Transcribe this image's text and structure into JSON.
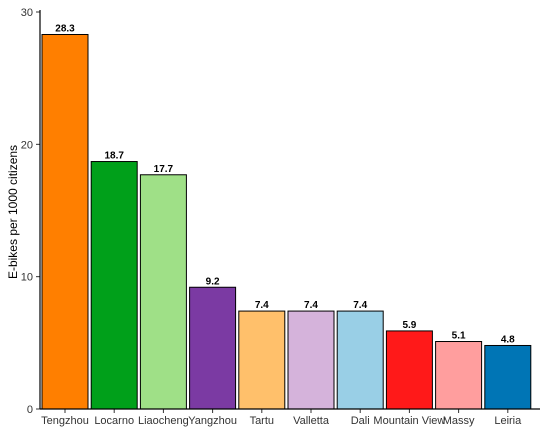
{
  "chart_data": {
    "type": "bar",
    "title": "",
    "xlabel": "",
    "ylabel": "E-bikes per 1000 citizens",
    "ylim": [
      0,
      30
    ],
    "yticks": [
      0,
      10,
      20,
      30
    ],
    "grid": false,
    "legend": "none",
    "categories": [
      "Tengzhou",
      "Locarno",
      "Liaocheng",
      "Yangzhou",
      "Tartu",
      "Valletta",
      "Dali",
      "Mountain View",
      "Massy",
      "Leiria"
    ],
    "values": [
      28.3,
      18.7,
      17.7,
      9.2,
      7.4,
      7.4,
      7.4,
      5.9,
      5.1,
      4.8
    ],
    "value_labels": [
      "28.3",
      "18.7",
      "17.7",
      "9.2",
      "7.4",
      "7.4",
      "7.4",
      "5.9",
      "5.1",
      "4.8"
    ],
    "colors": [
      "#FF7F00",
      "#00A01A",
      "#9FE087",
      "#7B3AA3",
      "#FFC06B",
      "#D5B3DB",
      "#99CFE6",
      "#FF1919",
      "#FF9E9E",
      "#0075B5"
    ]
  }
}
